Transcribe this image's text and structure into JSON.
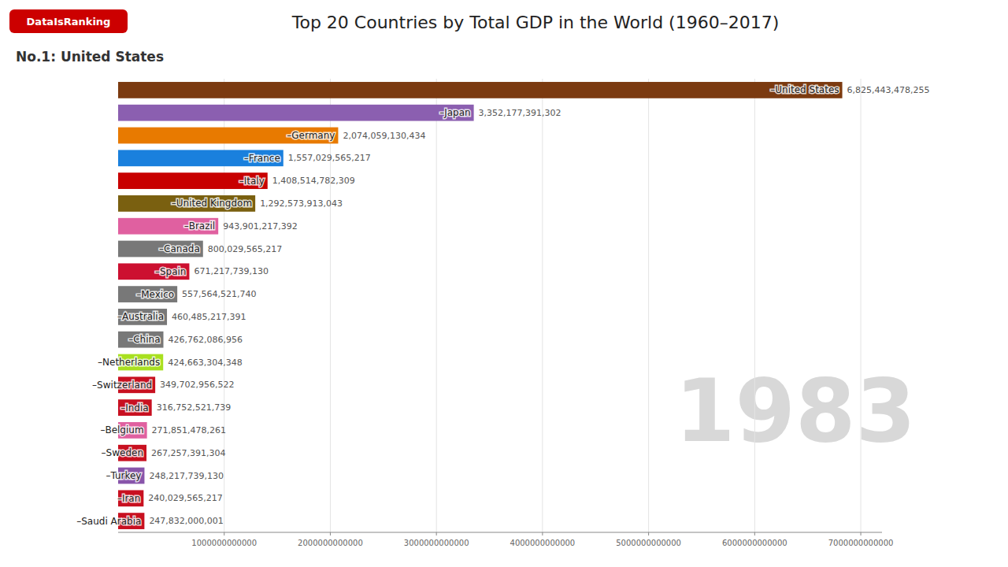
{
  "chart_data": {
    "type": "bar",
    "orientation": "horizontal",
    "title": "Top 20 Countries by Total GDP in the World (1960–2017)",
    "subtitle": "No.1: United States",
    "annotations": [
      "1983",
      "DataIsRanking"
    ],
    "categories": [
      "–United States",
      "–Japan",
      "–Germany",
      "–France",
      "–Italy",
      "–United Kingdom",
      "–Brazil",
      "–Canada",
      "–Spain",
      "–Mexico",
      "–Australia",
      "–China",
      "–Netherlands",
      "–Switzerland",
      "–India",
      "–Belgium",
      "–Sweden",
      "–Turkey",
      "–Iran",
      "–Saudi Arabia"
    ],
    "values": [
      6825443478255,
      3352177391302,
      2074059130434,
      1557029565217,
      1408514782309,
      1292573913043,
      943901217392,
      800029565217,
      671217739130,
      557564521740,
      460485217391,
      426762086956,
      424663304348,
      349702956522,
      316752521739,
      271851478261,
      267257391304,
      248217739130,
      240029565217,
      247832000001
    ],
    "value_labels": [
      "6,825,443,478,255",
      "3,352,177,391,302",
      "2,074,059,130,434",
      "1,557,029,565,217",
      "1,408,514,782,309",
      "1,292,573,913,043",
      "943,901,217,392",
      "800,029,565,217",
      "671,217,739,130",
      "557,564,521,740",
      "460,485,217,391",
      "426,762,086,956",
      "424,663,304,348",
      "349,702,956,522",
      "316,752,521,739",
      "271,851,478,261",
      "267,257,391,304",
      "248,217,739,130",
      "240,029,565,217",
      "247,832,000,001"
    ],
    "colors": [
      "#7B3A10",
      "#8B5FB0",
      "#E87A00",
      "#1A80DD",
      "#C80000",
      "#7A6010",
      "#E060A0",
      "#787878",
      "#CC1030",
      "#787878",
      "#787878",
      "#787878",
      "#A8E020",
      "#C81020",
      "#C81020",
      "#E060A0",
      "#C81020",
      "#8855AA",
      "#C81020",
      "#C81020"
    ],
    "xlim": [
      0,
      7200000000000
    ],
    "xticks": [
      1000000000000,
      2000000000000,
      3000000000000,
      4000000000000,
      5000000000000,
      6000000000000,
      7000000000000
    ],
    "grid": true,
    "data_labels": true,
    "tick_labels": "x"
  }
}
